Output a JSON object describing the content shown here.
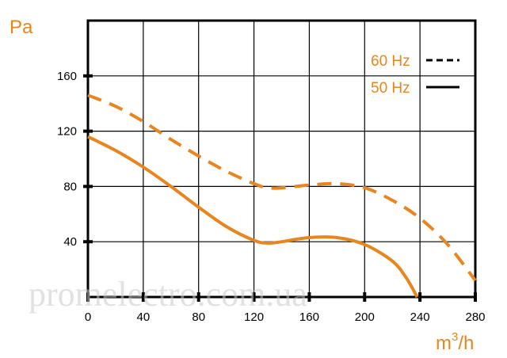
{
  "chart_data": {
    "type": "line",
    "xlabel": "m³/h",
    "xlabel_base": "m",
    "xlabel_sup": "3",
    "xlabel_rest": "/h",
    "ylabel": "Pa",
    "xlim": [
      0,
      280
    ],
    "ylim": [
      0,
      200
    ],
    "x_ticks": [
      0,
      40,
      80,
      120,
      160,
      200,
      240,
      280
    ],
    "x_tick_labels": [
      "0",
      "40",
      "80",
      "120",
      "160",
      "200",
      "240",
      "280"
    ],
    "y_ticks": [
      40,
      80,
      120,
      160
    ],
    "y_tick_labels": [
      "40",
      "80",
      "120",
      "160"
    ],
    "grid": true,
    "legend_position": "top-right",
    "series": [
      {
        "name": "60 Hz",
        "style": "dashed",
        "color": "#e8851f",
        "x": [
          0,
          20,
          40,
          60,
          80,
          100,
          120,
          130,
          140,
          160,
          180,
          200,
          220,
          240,
          260,
          280
        ],
        "y": [
          146,
          138,
          127,
          114,
          102,
          91,
          82,
          79,
          79,
          81,
          82,
          79,
          70,
          57,
          38,
          12
        ]
      },
      {
        "name": "50 Hz",
        "style": "solid",
        "color": "#e8851f",
        "x": [
          0,
          20,
          40,
          60,
          80,
          100,
          120,
          130,
          140,
          160,
          180,
          200,
          220,
          230,
          238
        ],
        "y": [
          116,
          106,
          94,
          80,
          65,
          51,
          41,
          39,
          40,
          43,
          43,
          38,
          26,
          14,
          0
        ]
      }
    ]
  },
  "watermark": "promelectro.com.ua",
  "colors": {
    "accent": "#e8851f",
    "grid": "#000000"
  }
}
